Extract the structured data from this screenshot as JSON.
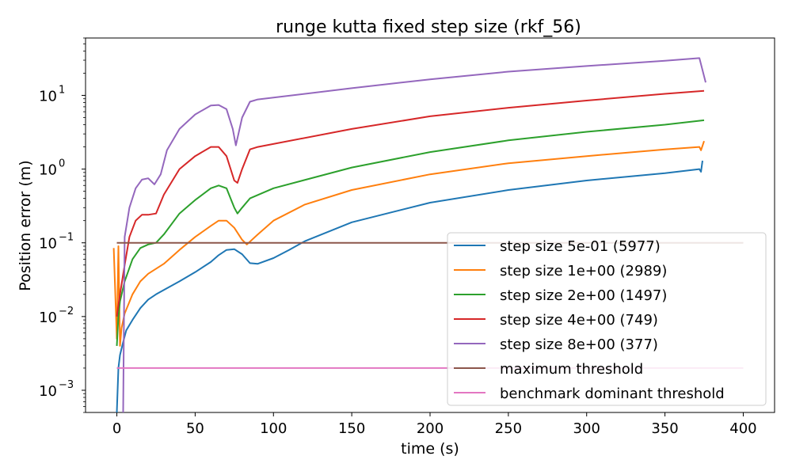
{
  "chart_data": {
    "type": "line",
    "title": "runge kutta fixed step size (rkf_56)",
    "xlabel": "time (s)",
    "ylabel": "Position error (m)",
    "yscale": "log",
    "xlim": [
      -20,
      420
    ],
    "ylim": [
      0.0005,
      60
    ],
    "xticks": [
      0,
      50,
      100,
      150,
      200,
      250,
      300,
      350,
      400
    ],
    "yticks": [
      {
        "value": 0.001,
        "base": "10",
        "exp": "−3"
      },
      {
        "value": 0.01,
        "base": "10",
        "exp": "−2"
      },
      {
        "value": 0.1,
        "base": "10",
        "exp": "−1"
      },
      {
        "value": 1,
        "base": "10",
        "exp": "0"
      },
      {
        "value": 10,
        "base": "10",
        "exp": "1"
      }
    ],
    "legend_position": "lower-right",
    "series": [
      {
        "name": "step size 5e-01 (5977)",
        "color": "#1f77b4",
        "points": [
          [
            0,
            0.0005
          ],
          [
            1,
            0.002
          ],
          [
            2,
            0.003
          ],
          [
            4,
            0.0045
          ],
          [
            6,
            0.0065
          ],
          [
            10,
            0.009
          ],
          [
            15,
            0.013
          ],
          [
            20,
            0.017
          ],
          [
            25,
            0.02
          ],
          [
            30,
            0.023
          ],
          [
            40,
            0.03
          ],
          [
            50,
            0.04
          ],
          [
            60,
            0.055
          ],
          [
            65,
            0.068
          ],
          [
            70,
            0.08
          ],
          [
            75,
            0.082
          ],
          [
            80,
            0.07
          ],
          [
            85,
            0.053
          ],
          [
            90,
            0.052
          ],
          [
            100,
            0.062
          ],
          [
            110,
            0.08
          ],
          [
            120,
            0.105
          ],
          [
            150,
            0.19
          ],
          [
            200,
            0.35
          ],
          [
            250,
            0.52
          ],
          [
            300,
            0.7
          ],
          [
            350,
            0.88
          ],
          [
            372,
            1.0
          ],
          [
            373,
            0.92
          ],
          [
            374,
            1.3
          ]
        ]
      },
      {
        "name": "step size 1e+00 (2989)",
        "color": "#ff7f0e",
        "points": [
          [
            -2,
            0.085
          ],
          [
            0,
            0.005
          ],
          [
            1,
            0.09
          ],
          [
            2,
            0.004
          ],
          [
            3,
            0.007
          ],
          [
            5,
            0.011
          ],
          [
            10,
            0.02
          ],
          [
            15,
            0.03
          ],
          [
            20,
            0.038
          ],
          [
            30,
            0.052
          ],
          [
            40,
            0.08
          ],
          [
            50,
            0.12
          ],
          [
            60,
            0.17
          ],
          [
            65,
            0.2
          ],
          [
            70,
            0.2
          ],
          [
            75,
            0.16
          ],
          [
            80,
            0.11
          ],
          [
            83,
            0.095
          ],
          [
            90,
            0.13
          ],
          [
            100,
            0.2
          ],
          [
            120,
            0.33
          ],
          [
            150,
            0.52
          ],
          [
            200,
            0.85
          ],
          [
            250,
            1.2
          ],
          [
            300,
            1.5
          ],
          [
            350,
            1.85
          ],
          [
            372,
            2.0
          ],
          [
            373,
            1.8
          ],
          [
            375,
            2.4
          ]
        ]
      },
      {
        "name": "step size 2e+00 (1497)",
        "color": "#2ca02c",
        "points": [
          [
            0,
            0.004
          ],
          [
            1,
            0.01
          ],
          [
            2,
            0.016
          ],
          [
            5,
            0.03
          ],
          [
            10,
            0.06
          ],
          [
            15,
            0.085
          ],
          [
            20,
            0.095
          ],
          [
            25,
            0.1
          ],
          [
            30,
            0.13
          ],
          [
            40,
            0.25
          ],
          [
            50,
            0.38
          ],
          [
            60,
            0.55
          ],
          [
            65,
            0.6
          ],
          [
            70,
            0.55
          ],
          [
            75,
            0.3
          ],
          [
            77,
            0.25
          ],
          [
            80,
            0.3
          ],
          [
            85,
            0.4
          ],
          [
            100,
            0.55
          ],
          [
            150,
            1.05
          ],
          [
            200,
            1.7
          ],
          [
            250,
            2.45
          ],
          [
            300,
            3.2
          ],
          [
            350,
            4.0
          ],
          [
            375,
            4.6
          ]
        ]
      },
      {
        "name": "step size 4e+00 (749)",
        "color": "#d62728",
        "points": [
          [
            0,
            0.01
          ],
          [
            2,
            0.02
          ],
          [
            5,
            0.05
          ],
          [
            8,
            0.12
          ],
          [
            12,
            0.2
          ],
          [
            16,
            0.24
          ],
          [
            20,
            0.24
          ],
          [
            25,
            0.25
          ],
          [
            30,
            0.45
          ],
          [
            40,
            1.0
          ],
          [
            50,
            1.5
          ],
          [
            60,
            2.0
          ],
          [
            65,
            2.0
          ],
          [
            70,
            1.5
          ],
          [
            75,
            0.7
          ],
          [
            77,
            0.65
          ],
          [
            80,
            1.0
          ],
          [
            85,
            1.85
          ],
          [
            90,
            2.0
          ],
          [
            150,
            3.5
          ],
          [
            200,
            5.2
          ],
          [
            250,
            6.8
          ],
          [
            300,
            8.5
          ],
          [
            350,
            10.5
          ],
          [
            375,
            11.5
          ]
        ]
      },
      {
        "name": "step size 8e+00 (377)",
        "color": "#9467bd",
        "points": [
          [
            4,
            0.0005
          ],
          [
            5,
            0.12
          ],
          [
            8,
            0.3
          ],
          [
            12,
            0.55
          ],
          [
            16,
            0.72
          ],
          [
            20,
            0.75
          ],
          [
            24,
            0.62
          ],
          [
            28,
            0.85
          ],
          [
            32,
            1.8
          ],
          [
            40,
            3.5
          ],
          [
            50,
            5.5
          ],
          [
            60,
            7.3
          ],
          [
            65,
            7.4
          ],
          [
            70,
            6.5
          ],
          [
            74,
            3.5
          ],
          [
            76,
            2.1
          ],
          [
            80,
            5.0
          ],
          [
            85,
            8.2
          ],
          [
            90,
            8.8
          ],
          [
            150,
            12.5
          ],
          [
            200,
            16.5
          ],
          [
            250,
            21
          ],
          [
            300,
            25
          ],
          [
            350,
            29.5
          ],
          [
            372,
            32
          ],
          [
            376,
            15
          ]
        ]
      },
      {
        "name": "maximum threshold",
        "color": "#8c564b",
        "points": [
          [
            0,
            0.1
          ],
          [
            400,
            0.1
          ]
        ]
      },
      {
        "name": "benchmark dominant threshold",
        "color": "#e377c2",
        "points": [
          [
            0,
            0.002
          ],
          [
            400,
            0.002
          ]
        ]
      }
    ]
  }
}
